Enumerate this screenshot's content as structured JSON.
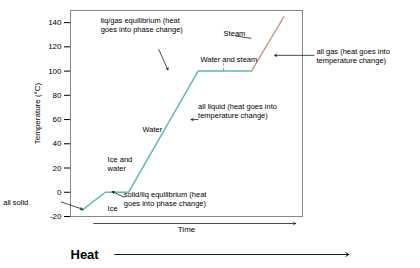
{
  "chart_data": {
    "type": "line",
    "x": [
      0.5,
      1.5,
      2.5,
      5.5,
      7.8,
      9.2
    ],
    "series": [
      {
        "color": "#5bbcb8",
        "values": [
          -15,
          0,
          0,
          100,
          100,
          null
        ]
      },
      {
        "color": "#c8a08a",
        "values": [
          null,
          null,
          null,
          null,
          100,
          145
        ]
      }
    ],
    "xlabel": "Heat",
    "ylabel": "Temperature (°C)",
    "xlim": [
      0,
      10
    ],
    "ylim": [
      -20,
      150
    ],
    "yticks": [
      -20,
      0,
      20,
      40,
      60,
      80,
      100,
      120,
      140
    ],
    "tick_labels": "y",
    "annotations": [
      {
        "text": "Time",
        "x": 5.0,
        "y": -20
      },
      {
        "text": "liq/gas equilibrium (heat\ngoes into phase change)",
        "x": 1.3,
        "y": 138
      },
      {
        "text": "Steam",
        "x": 6.6,
        "y": 131
      },
      {
        "text": "Water and steam",
        "x": 5.6,
        "y": 110
      },
      {
        "text": "all liquid (heat goes into\ntemperature change)",
        "x": 5.5,
        "y": 67
      },
      {
        "text": "Water",
        "x": 3.1,
        "y": 52
      },
      {
        "text": "Ice and\nwater",
        "x": 1.6,
        "y": 24
      },
      {
        "text": "Ice",
        "x": 1.6,
        "y": -13
      },
      {
        "text": "solid/liq equilibrium (heat\ngoes into phase change)",
        "x": 2.3,
        "y": -5
      },
      {
        "text": "all solid",
        "x": -2.9,
        "y": -8
      },
      {
        "text": "all gas (heat goes into\ntemperature change)",
        "x": 10.6,
        "y": 113
      }
    ]
  }
}
